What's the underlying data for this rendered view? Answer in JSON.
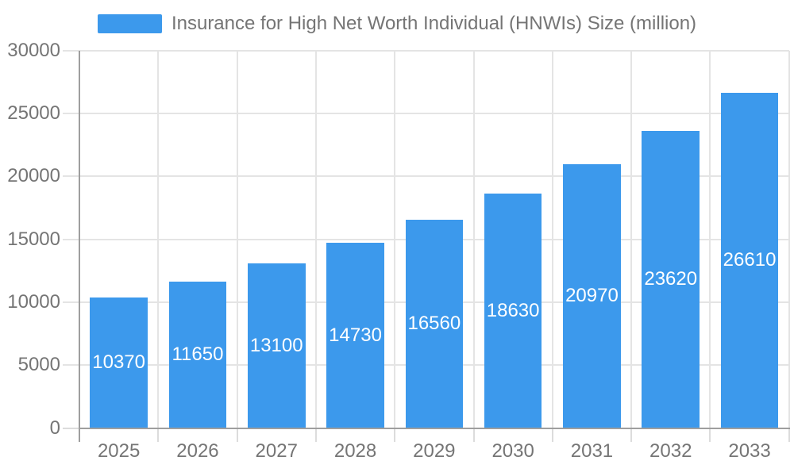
{
  "chart_data": {
    "type": "bar",
    "title": "Insurance for High Net Worth Individual (HNWIs) Size (million)",
    "legend_position": "top-center",
    "categories": [
      "2025",
      "2026",
      "2027",
      "2028",
      "2029",
      "2030",
      "2031",
      "2032",
      "2033"
    ],
    "values": [
      10370,
      11650,
      13100,
      14730,
      16560,
      18630,
      20970,
      23620,
      26610
    ],
    "xlabel": "",
    "ylabel": "",
    "ylim": [
      0,
      30000
    ],
    "yticks": [
      0,
      5000,
      10000,
      15000,
      20000,
      25000,
      30000
    ],
    "ytick_labels": [
      "0",
      "5000",
      "10000",
      "15000",
      "20000",
      "25000",
      "30000"
    ],
    "grid": true,
    "value_labels": "inside-bar-center",
    "colors": {
      "bar": "#3C99EC",
      "value_label": "#FFFFFF",
      "axis_text": "#757575",
      "grid_line": "#E4E4E4",
      "tick_line": "#DCDCDC",
      "axis_line": "#9E9E9E",
      "background": "#FFFFFF"
    }
  }
}
